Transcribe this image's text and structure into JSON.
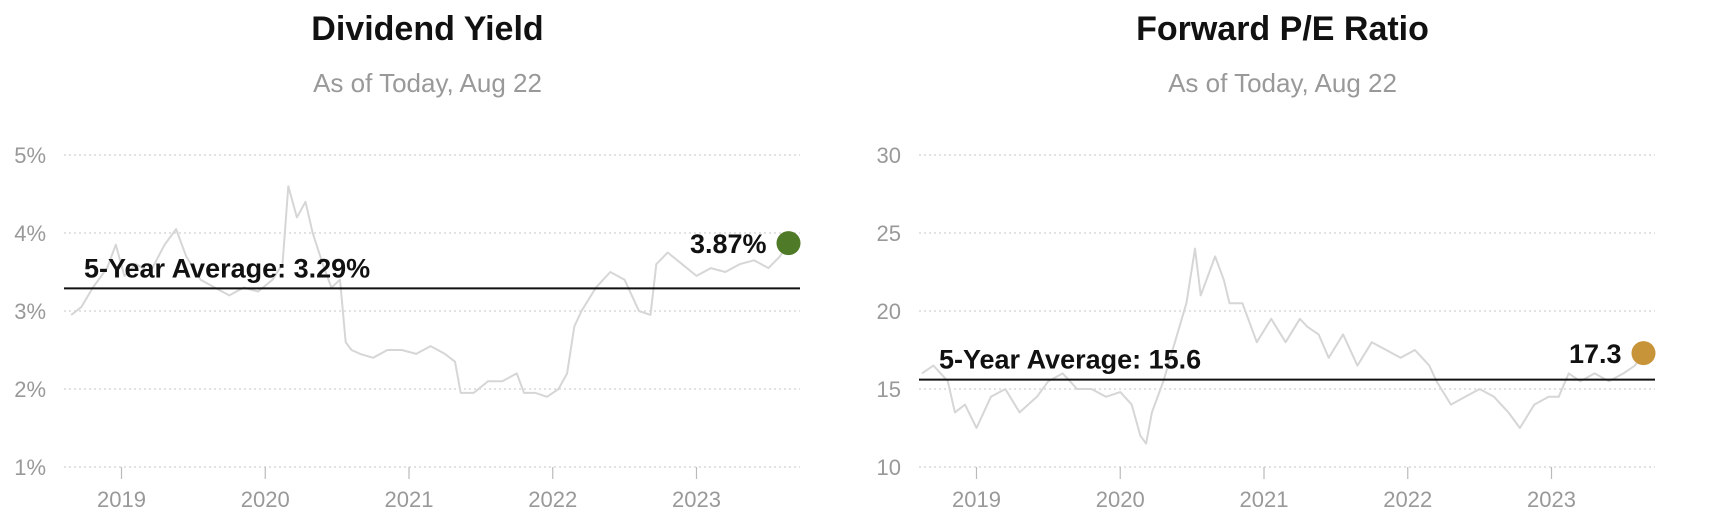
{
  "chart_data": [
    {
      "type": "line",
      "title": "Dividend Yield",
      "subtitle": "As of Today, Aug 22",
      "y_tick_labels": [
        "5%",
        "4%",
        "3%",
        "2%",
        "1%"
      ],
      "y_ticks": [
        5,
        4,
        3,
        2,
        1
      ],
      "ylim": [
        1,
        5
      ],
      "x_tick_labels": [
        "2019",
        "2020",
        "2021",
        "2022",
        "2023"
      ],
      "x_ticks": [
        2019,
        2020,
        2021,
        2022,
        2023
      ],
      "xlim": [
        2018.6,
        2023.72
      ],
      "average": {
        "label": "5-Year Average: 3.29%",
        "value": 3.29
      },
      "current": {
        "label": "3.87%",
        "x": 2023.64,
        "value": 3.87,
        "color": "#4f7a28"
      },
      "line_color": "#d6d6d6",
      "grid": true,
      "series": [
        {
          "x": [
            2018.65,
            2018.72,
            2018.8,
            2018.9,
            2018.96,
            2019.02,
            2019.1,
            2019.2,
            2019.3,
            2019.38,
            2019.45,
            2019.55,
            2019.65,
            2019.75,
            2019.85,
            2019.95,
            2020.05,
            2020.12,
            2020.16,
            2020.22,
            2020.28,
            2020.33,
            2020.4,
            2020.46,
            2020.52,
            2020.56,
            2020.6,
            2020.66,
            2020.75,
            2020.85,
            2020.95,
            2021.05,
            2021.15,
            2021.25,
            2021.32,
            2021.36,
            2021.45,
            2021.55,
            2021.65,
            2021.75,
            2021.8,
            2021.88,
            2021.96,
            2022.04,
            2022.1,
            2022.15,
            2022.2,
            2022.3,
            2022.4,
            2022.5,
            2022.6,
            2022.68,
            2022.72,
            2022.8,
            2022.9,
            2023.0,
            2023.1,
            2023.2,
            2023.3,
            2023.4,
            2023.5,
            2023.58,
            2023.64
          ],
          "y": [
            2.95,
            3.05,
            3.3,
            3.55,
            3.85,
            3.45,
            3.6,
            3.5,
            3.85,
            4.05,
            3.7,
            3.4,
            3.3,
            3.2,
            3.3,
            3.25,
            3.4,
            3.6,
            4.6,
            4.2,
            4.4,
            4.0,
            3.6,
            3.3,
            3.4,
            2.6,
            2.5,
            2.45,
            2.4,
            2.5,
            2.5,
            2.45,
            2.55,
            2.45,
            2.35,
            1.95,
            1.95,
            2.1,
            2.1,
            2.2,
            1.95,
            1.95,
            1.9,
            2.0,
            2.2,
            2.8,
            3.0,
            3.3,
            3.5,
            3.4,
            3.0,
            2.95,
            3.6,
            3.75,
            3.6,
            3.45,
            3.55,
            3.5,
            3.6,
            3.65,
            3.55,
            3.7,
            3.87
          ]
        }
      ]
    },
    {
      "type": "line",
      "title": "Forward P/E Ratio",
      "subtitle": "As of Today, Aug 22",
      "y_tick_labels": [
        "30",
        "25",
        "20",
        "15",
        "10"
      ],
      "y_ticks": [
        30,
        25,
        20,
        15,
        10
      ],
      "ylim": [
        10,
        30
      ],
      "x_tick_labels": [
        "2019",
        "2020",
        "2021",
        "2022",
        "2023"
      ],
      "x_ticks": [
        2019,
        2020,
        2021,
        2022,
        2023
      ],
      "xlim": [
        2018.6,
        2023.72
      ],
      "average": {
        "label": "5-Year Average: 15.6",
        "value": 15.6
      },
      "current": {
        "label": "17.3",
        "x": 2023.64,
        "value": 17.3,
        "color": "#c8943a"
      },
      "line_color": "#d6d6d6",
      "grid": true,
      "series": [
        {
          "x": [
            2018.62,
            2018.7,
            2018.8,
            2018.85,
            2018.92,
            2019.0,
            2019.1,
            2019.2,
            2019.3,
            2019.42,
            2019.5,
            2019.6,
            2019.7,
            2019.8,
            2019.9,
            2020.0,
            2020.08,
            2020.14,
            2020.18,
            2020.22,
            2020.3,
            2020.38,
            2020.46,
            2020.52,
            2020.56,
            2020.6,
            2020.66,
            2020.72,
            2020.76,
            2020.85,
            2020.95,
            2021.05,
            2021.15,
            2021.25,
            2021.3,
            2021.38,
            2021.45,
            2021.55,
            2021.65,
            2021.75,
            2021.85,
            2021.95,
            2022.05,
            2022.15,
            2022.2,
            2022.3,
            2022.4,
            2022.5,
            2022.6,
            2022.7,
            2022.78,
            2022.88,
            2022.98,
            2023.05,
            2023.12,
            2023.2,
            2023.3,
            2023.4,
            2023.5,
            2023.58,
            2023.64
          ],
          "y": [
            16.0,
            16.5,
            15.5,
            13.5,
            14.0,
            12.5,
            14.5,
            15.0,
            13.5,
            14.5,
            15.5,
            16.0,
            15.0,
            15.0,
            14.5,
            14.8,
            14.0,
            12.0,
            11.5,
            13.5,
            15.5,
            18.0,
            20.5,
            24.0,
            21.0,
            22.0,
            23.5,
            22.0,
            20.5,
            20.5,
            18.0,
            19.5,
            18.0,
            19.5,
            19.0,
            18.5,
            17.0,
            18.5,
            16.5,
            18.0,
            17.5,
            17.0,
            17.5,
            16.5,
            15.5,
            14.0,
            14.5,
            15.0,
            14.5,
            13.5,
            12.5,
            14.0,
            14.5,
            14.5,
            16.0,
            15.5,
            16.0,
            15.5,
            16.0,
            16.5,
            17.3
          ]
        }
      ]
    }
  ]
}
